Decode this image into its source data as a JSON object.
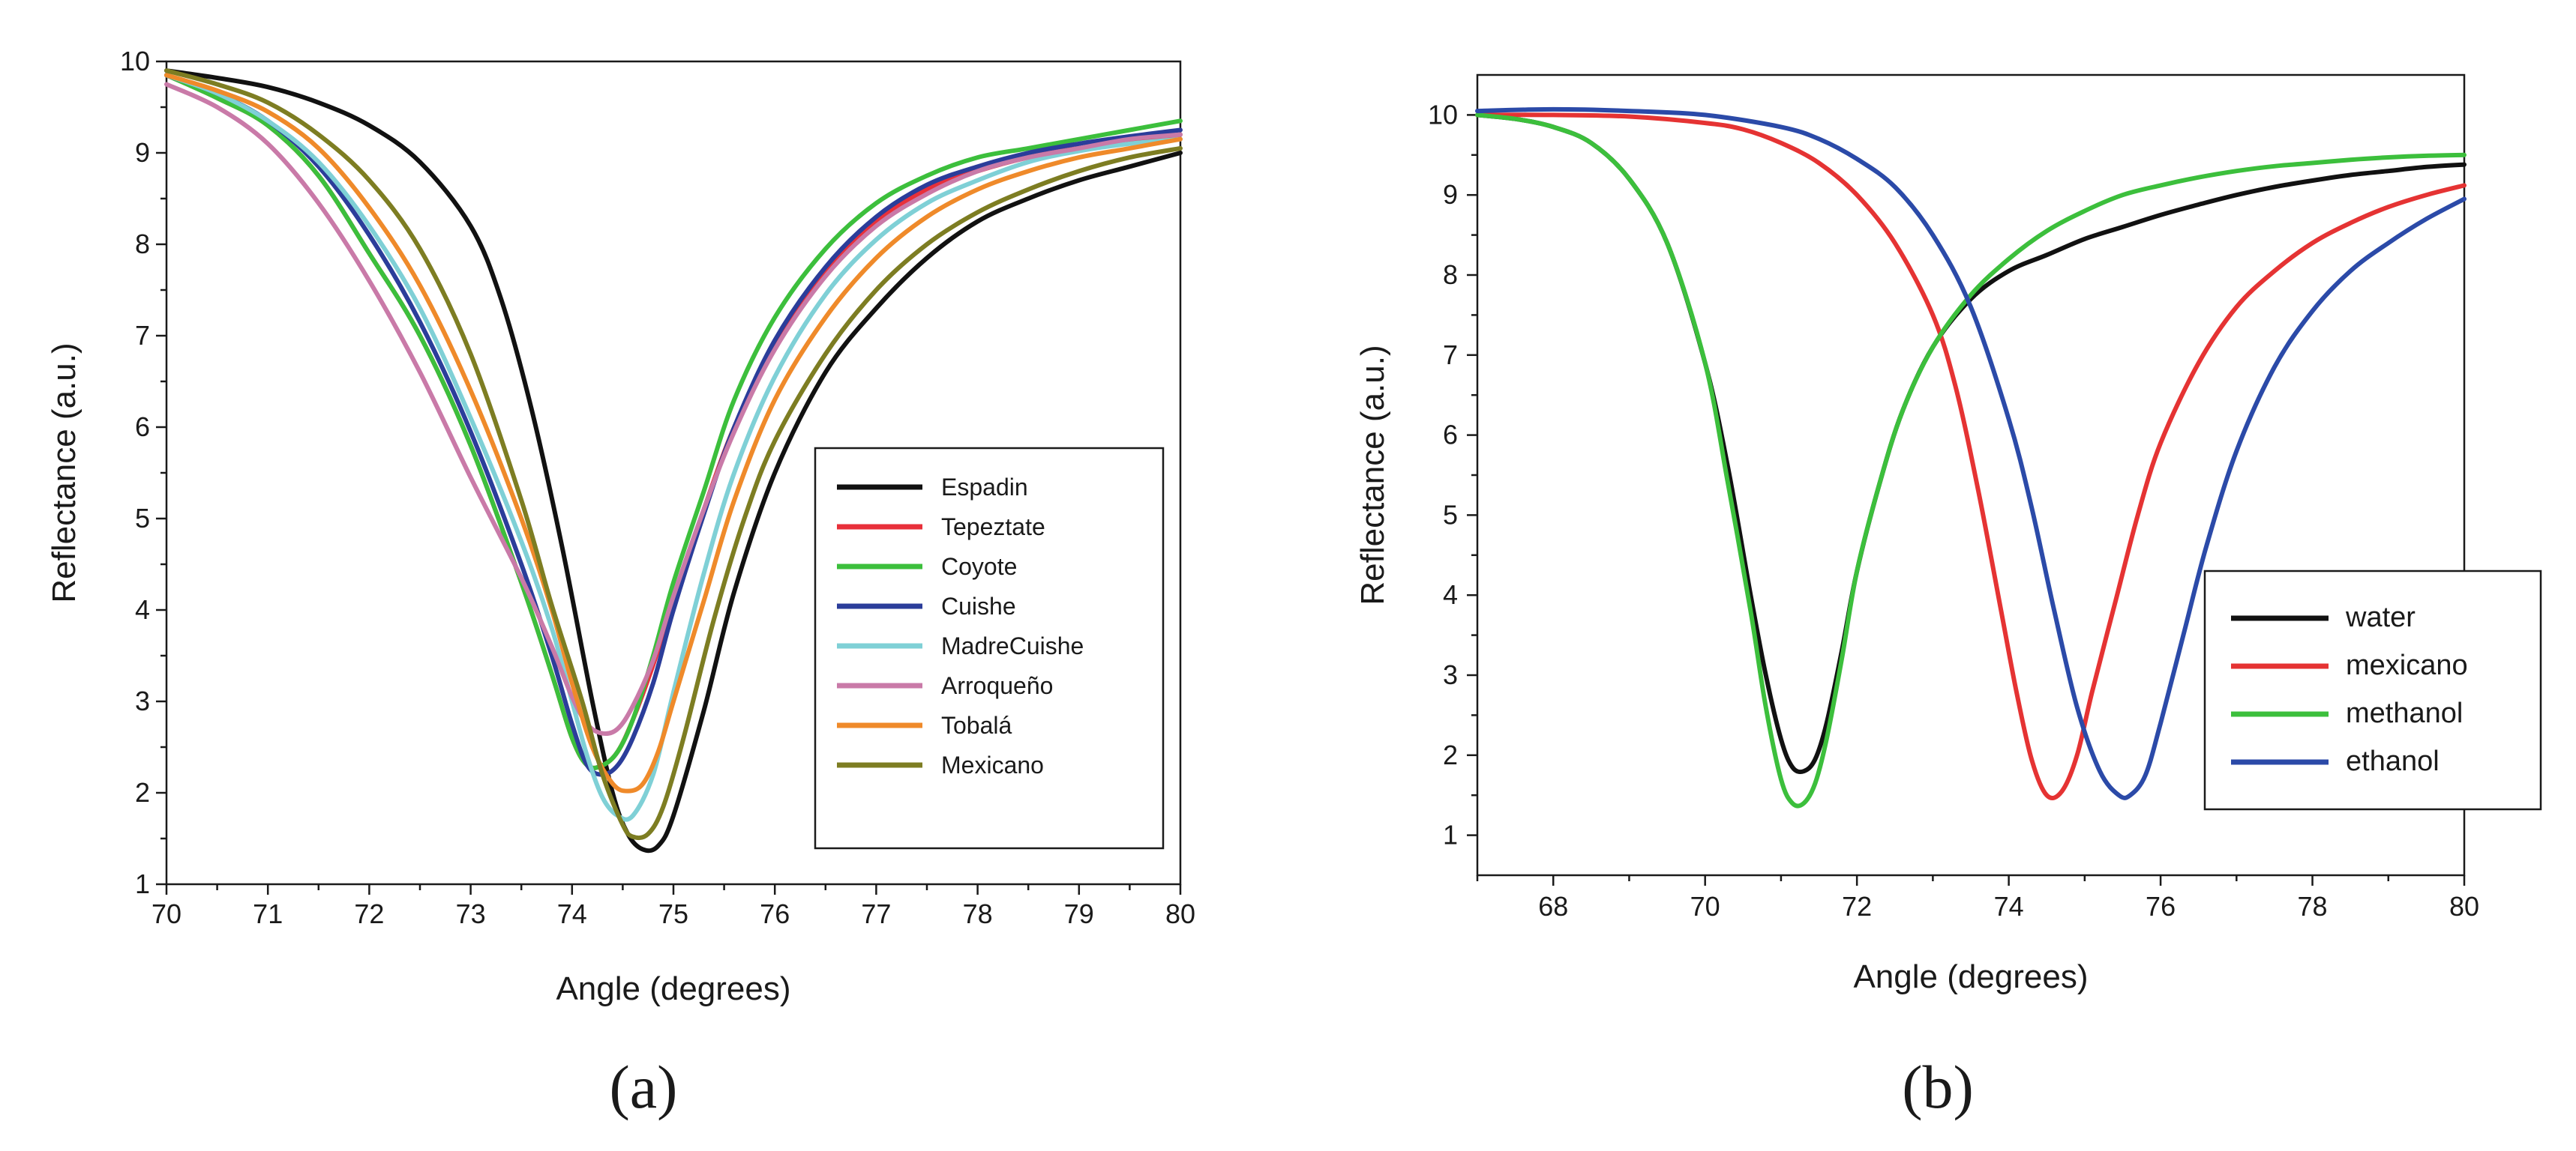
{
  "chart_data": [
    {
      "type": "line",
      "panel_label": "(a)",
      "title": "",
      "xlabel": "Angle (degrees)",
      "ylabel": "Reflectance (a.u.)",
      "xlim": [
        70,
        80
      ],
      "ylim": [
        1,
        10
      ],
      "xticks": [
        70,
        71,
        72,
        73,
        74,
        75,
        76,
        77,
        78,
        79,
        80
      ],
      "yticks": [
        1,
        2,
        3,
        4,
        5,
        6,
        7,
        8,
        9,
        10
      ],
      "legend_position": "center-right",
      "series": [
        {
          "name": "Espadin",
          "color": "#111111",
          "x": [
            70,
            70.5,
            71,
            71.5,
            72,
            72.5,
            73,
            73.3,
            73.6,
            73.9,
            74.2,
            74.4,
            74.55,
            74.7,
            74.85,
            75,
            75.3,
            75.6,
            76,
            76.5,
            77,
            77.5,
            78,
            78.5,
            79,
            79.5,
            80
          ],
          "y": [
            9.9,
            9.82,
            9.72,
            9.55,
            9.3,
            8.9,
            8.2,
            7.4,
            6.2,
            4.7,
            3.0,
            2.0,
            1.55,
            1.38,
            1.42,
            1.75,
            2.9,
            4.2,
            5.5,
            6.6,
            7.3,
            7.85,
            8.25,
            8.5,
            8.7,
            8.85,
            9.0
          ]
        },
        {
          "name": "Tepeztate",
          "color": "#e8303a",
          "x": [
            70,
            70.5,
            71,
            71.5,
            72,
            72.5,
            73,
            73.5,
            73.8,
            74,
            74.15,
            74.3,
            74.45,
            74.6,
            74.8,
            75,
            75.3,
            75.6,
            76,
            76.5,
            77,
            77.5,
            78,
            78.5,
            79,
            79.5,
            80
          ],
          "y": [
            9.85,
            9.6,
            9.3,
            8.75,
            7.9,
            7.0,
            5.8,
            4.3,
            3.3,
            2.6,
            2.3,
            2.3,
            2.45,
            2.8,
            3.4,
            4.1,
            5.1,
            6.0,
            6.9,
            7.7,
            8.25,
            8.6,
            8.8,
            8.95,
            9.05,
            9.12,
            9.2
          ]
        },
        {
          "name": "Coyote",
          "color": "#3cbf3c",
          "x": [
            70,
            70.5,
            71,
            71.5,
            72,
            72.5,
            73,
            73.5,
            73.8,
            74,
            74.15,
            74.3,
            74.45,
            74.6,
            74.8,
            75,
            75.3,
            75.6,
            76,
            76.5,
            77,
            77.5,
            78,
            78.5,
            79,
            79.5,
            80
          ],
          "y": [
            9.85,
            9.6,
            9.3,
            8.75,
            7.9,
            7.0,
            5.8,
            4.3,
            3.3,
            2.6,
            2.3,
            2.3,
            2.45,
            2.8,
            3.5,
            4.3,
            5.3,
            6.3,
            7.2,
            7.95,
            8.45,
            8.75,
            8.95,
            9.05,
            9.15,
            9.25,
            9.35
          ]
        },
        {
          "name": "Cuishe",
          "color": "#2b3d9a",
          "x": [
            70,
            70.5,
            71,
            71.5,
            72,
            72.5,
            73,
            73.5,
            73.8,
            74,
            74.15,
            74.3,
            74.45,
            74.6,
            74.8,
            75,
            75.3,
            75.6,
            76,
            76.5,
            77,
            77.5,
            78,
            78.5,
            79,
            79.5,
            80
          ],
          "y": [
            9.85,
            9.65,
            9.35,
            8.85,
            8.1,
            7.15,
            5.95,
            4.5,
            3.5,
            2.75,
            2.3,
            2.2,
            2.3,
            2.6,
            3.2,
            4.0,
            5.05,
            6.0,
            6.95,
            7.75,
            8.3,
            8.65,
            8.85,
            9.0,
            9.1,
            9.18,
            9.25
          ]
        },
        {
          "name": "MadreCuishe",
          "color": "#7fd0d6",
          "x": [
            70,
            70.5,
            71,
            71.5,
            72,
            72.5,
            73,
            73.5,
            73.8,
            74,
            74.15,
            74.3,
            74.45,
            74.6,
            74.8,
            75,
            75.3,
            75.6,
            76,
            76.5,
            77,
            77.5,
            78,
            78.5,
            79,
            79.5,
            80
          ],
          "y": [
            9.85,
            9.65,
            9.35,
            8.9,
            8.2,
            7.3,
            6.1,
            4.75,
            3.8,
            3.0,
            2.4,
            1.95,
            1.75,
            1.75,
            2.2,
            3.1,
            4.4,
            5.5,
            6.55,
            7.45,
            8.05,
            8.45,
            8.7,
            8.9,
            9.02,
            9.1,
            9.15
          ]
        },
        {
          "name": "Arroqueño",
          "color": "#c97aa8",
          "x": [
            70,
            70.5,
            71,
            71.5,
            72,
            72.5,
            73,
            73.5,
            73.8,
            74,
            74.15,
            74.3,
            74.45,
            74.6,
            74.8,
            75,
            75.3,
            75.6,
            76,
            76.5,
            77,
            77.5,
            78,
            78.5,
            79,
            79.5,
            80
          ],
          "y": [
            9.75,
            9.5,
            9.1,
            8.45,
            7.6,
            6.6,
            5.45,
            4.35,
            3.6,
            3.05,
            2.75,
            2.65,
            2.7,
            2.95,
            3.45,
            4.15,
            5.1,
            5.95,
            6.85,
            7.65,
            8.2,
            8.55,
            8.8,
            8.95,
            9.05,
            9.15,
            9.2
          ]
        },
        {
          "name": "Tobalá",
          "color": "#ef8a2a",
          "x": [
            70,
            70.5,
            71,
            71.5,
            72,
            72.5,
            73,
            73.5,
            73.8,
            74,
            74.2,
            74.4,
            74.55,
            74.7,
            74.85,
            75,
            75.3,
            75.6,
            76,
            76.5,
            77,
            77.5,
            78,
            78.5,
            79,
            79.5,
            80
          ],
          "y": [
            9.85,
            9.68,
            9.45,
            9.05,
            8.4,
            7.55,
            6.4,
            5.0,
            4.0,
            3.2,
            2.5,
            2.1,
            2.02,
            2.1,
            2.45,
            3.0,
            4.1,
            5.2,
            6.3,
            7.2,
            7.85,
            8.3,
            8.6,
            8.8,
            8.95,
            9.05,
            9.15
          ]
        },
        {
          "name": "Mexicano",
          "color": "#7d7d22",
          "x": [
            70,
            70.5,
            71,
            71.5,
            72,
            72.5,
            73,
            73.5,
            73.8,
            74.1,
            74.3,
            74.5,
            74.6,
            74.75,
            74.9,
            75.1,
            75.4,
            75.7,
            76,
            76.5,
            77,
            77.5,
            78,
            78.5,
            79,
            79.5,
            80
          ],
          "y": [
            9.9,
            9.75,
            9.55,
            9.2,
            8.7,
            7.95,
            6.8,
            5.2,
            4.05,
            3.0,
            2.2,
            1.65,
            1.52,
            1.55,
            1.85,
            2.6,
            3.9,
            5.0,
            5.85,
            6.8,
            7.5,
            8.0,
            8.35,
            8.6,
            8.8,
            8.95,
            9.05
          ]
        }
      ]
    },
    {
      "type": "line",
      "panel_label": "(b)",
      "title": "",
      "xlabel": "Angle (degrees)",
      "ylabel": "Reflectance (a.u.)",
      "xlim": [
        67,
        80
      ],
      "ylim": [
        0.5,
        10.5
      ],
      "xticks": [
        68,
        70,
        72,
        74,
        76,
        78,
        80
      ],
      "yticks": [
        1,
        2,
        3,
        4,
        5,
        6,
        7,
        8,
        9,
        10
      ],
      "legend_position": "lower-right",
      "series": [
        {
          "name": "water",
          "color": "#111111",
          "x": [
            67,
            67.5,
            68,
            68.5,
            69,
            69.5,
            70,
            70.3,
            70.6,
            70.8,
            71,
            71.15,
            71.3,
            71.45,
            71.6,
            71.8,
            72,
            72.3,
            72.6,
            73,
            73.5,
            74,
            74.5,
            75,
            75.5,
            76,
            76.5,
            77,
            77.5,
            78,
            78.5,
            79,
            79.5,
            80
          ],
          "y": [
            10.0,
            9.95,
            9.85,
            9.65,
            9.2,
            8.4,
            6.9,
            5.6,
            4.0,
            3.0,
            2.2,
            1.85,
            1.8,
            1.95,
            2.4,
            3.3,
            4.3,
            5.4,
            6.3,
            7.1,
            7.7,
            8.05,
            8.25,
            8.45,
            8.6,
            8.75,
            8.88,
            9.0,
            9.1,
            9.18,
            9.25,
            9.3,
            9.35,
            9.38
          ]
        },
        {
          "name": "mexicano",
          "color": "#e53333",
          "x": [
            67,
            68,
            69,
            70,
            70.5,
            71,
            71.5,
            72,
            72.5,
            73,
            73.3,
            73.6,
            73.9,
            74.1,
            74.3,
            74.5,
            74.7,
            74.9,
            75.1,
            75.4,
            75.7,
            76,
            76.5,
            77,
            77.5,
            78,
            78.5,
            79,
            79.5,
            80
          ],
          "y": [
            10.0,
            10.0,
            9.98,
            9.9,
            9.82,
            9.65,
            9.4,
            9.0,
            8.4,
            7.5,
            6.6,
            5.3,
            3.8,
            2.8,
            1.95,
            1.5,
            1.55,
            2.0,
            2.8,
            3.9,
            5.0,
            5.9,
            6.9,
            7.6,
            8.05,
            8.4,
            8.65,
            8.85,
            9.0,
            9.12
          ]
        },
        {
          "name": "methanol",
          "color": "#3cbf3c",
          "x": [
            67,
            67.5,
            68,
            68.5,
            69,
            69.5,
            70,
            70.3,
            70.6,
            70.8,
            71,
            71.15,
            71.3,
            71.45,
            71.6,
            71.8,
            72,
            72.3,
            72.6,
            73,
            73.5,
            74,
            74.5,
            75,
            75.5,
            76,
            76.5,
            77,
            77.5,
            78,
            78.5,
            79,
            79.5,
            80
          ],
          "y": [
            10.0,
            9.95,
            9.85,
            9.65,
            9.2,
            8.4,
            6.9,
            5.4,
            3.8,
            2.6,
            1.7,
            1.4,
            1.4,
            1.65,
            2.2,
            3.2,
            4.3,
            5.4,
            6.3,
            7.1,
            7.75,
            8.2,
            8.55,
            8.8,
            9.0,
            9.12,
            9.22,
            9.3,
            9.36,
            9.4,
            9.44,
            9.47,
            9.49,
            9.5
          ]
        },
        {
          "name": "ethanol",
          "color": "#2b4aa8",
          "x": [
            67,
            68,
            69,
            70,
            71,
            71.5,
            72,
            72.5,
            73,
            73.5,
            74,
            74.3,
            74.6,
            74.9,
            75.2,
            75.45,
            75.6,
            75.8,
            76,
            76.3,
            76.6,
            77,
            77.5,
            78,
            78.5,
            79,
            79.5,
            80
          ],
          "y": [
            10.05,
            10.07,
            10.05,
            10.0,
            9.85,
            9.7,
            9.45,
            9.1,
            8.5,
            7.6,
            6.2,
            5.1,
            3.8,
            2.6,
            1.8,
            1.5,
            1.5,
            1.75,
            2.4,
            3.5,
            4.6,
            5.8,
            6.85,
            7.55,
            8.05,
            8.4,
            8.7,
            8.95
          ]
        }
      ]
    }
  ]
}
